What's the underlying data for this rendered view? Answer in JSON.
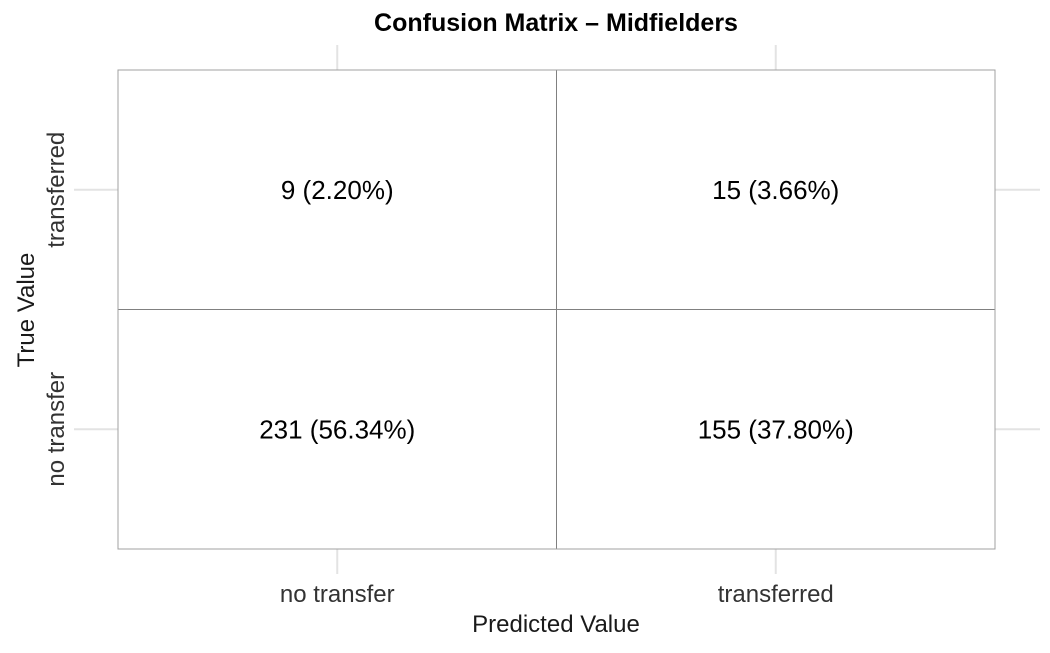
{
  "chart_data": {
    "type": "heatmap",
    "title": "Confusion Matrix – Midfielders",
    "xlabel": "Predicted Value",
    "ylabel": "True Value",
    "x_categories": [
      "no transfer",
      "transferred"
    ],
    "y_categories": [
      "no transfer",
      "transferred"
    ],
    "cells": [
      {
        "true": "transferred",
        "predicted": "no transfer",
        "count": 9,
        "label": "9 (2.20%)"
      },
      {
        "true": "transferred",
        "predicted": "transferred",
        "count": 15,
        "label": "15 (3.66%)"
      },
      {
        "true": "no transfer",
        "predicted": "no transfer",
        "count": 231,
        "label": "231 (56.34%)"
      },
      {
        "true": "no transfer",
        "predicted": "transferred",
        "count": 155,
        "label": "155 (37.80%)"
      }
    ],
    "grid": true,
    "legend": "none"
  }
}
